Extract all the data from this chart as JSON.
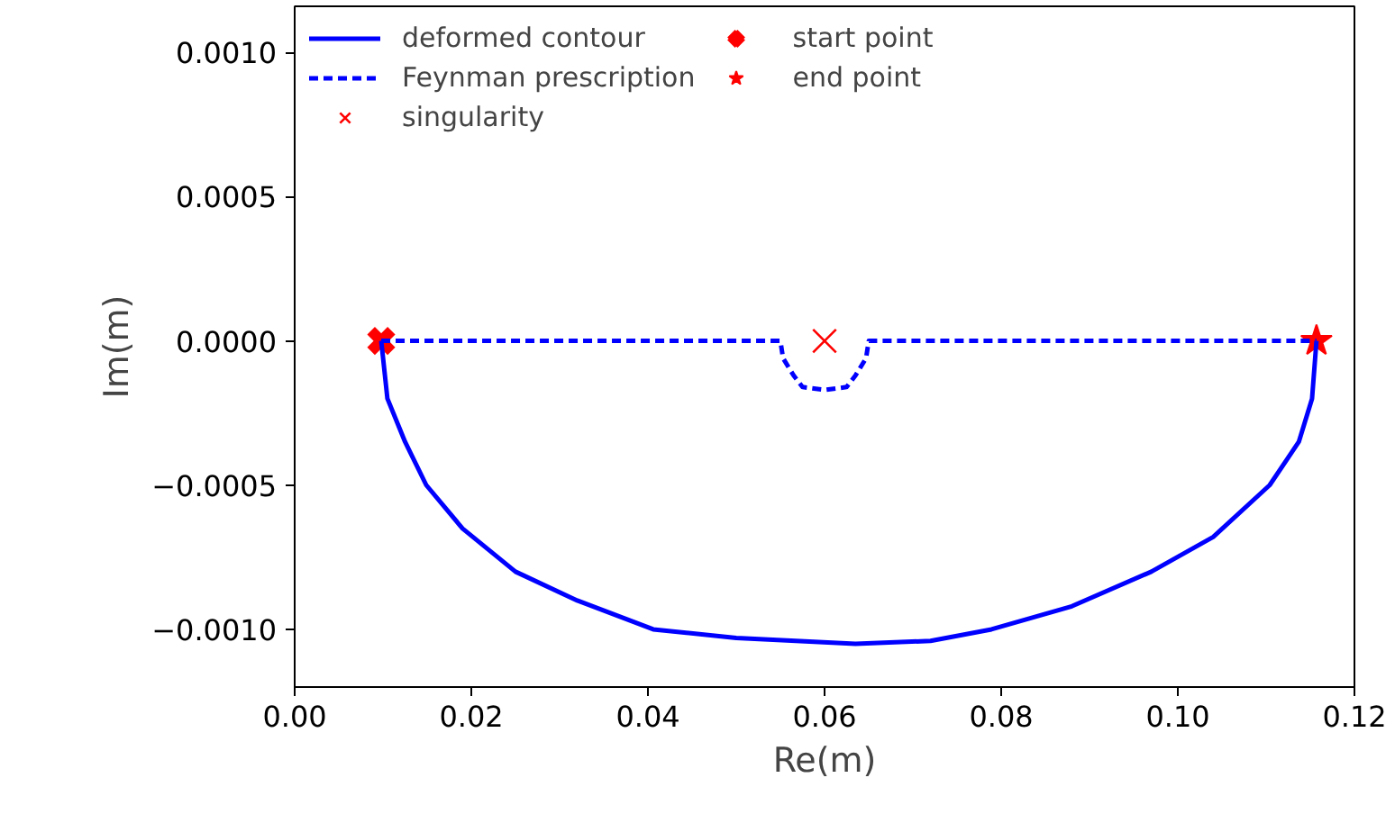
{
  "chart_data": {
    "type": "line",
    "xlabel": "Re(m)",
    "ylabel": "Im(m)",
    "xlim": [
      0,
      0.12
    ],
    "ylim": [
      -0.0012,
      0.00116
    ],
    "xticks": [
      {
        "value": 0,
        "label": "0.00"
      },
      {
        "value": 0.02,
        "label": "0.02"
      },
      {
        "value": 0.04,
        "label": "0.04"
      },
      {
        "value": 0.06,
        "label": "0.06"
      },
      {
        "value": 0.08,
        "label": "0.08"
      },
      {
        "value": 0.1,
        "label": "0.10"
      },
      {
        "value": 0.12,
        "label": "0.12"
      }
    ],
    "yticks": [
      {
        "value": -0.001,
        "label": "−0.0010"
      },
      {
        "value": -0.0005,
        "label": "−0.0005"
      },
      {
        "value": 0,
        "label": "0.0000"
      },
      {
        "value": 0.0005,
        "label": "0.0005"
      },
      {
        "value": 0.001,
        "label": "0.0010"
      }
    ],
    "grid": false,
    "legend": "top left",
    "series": [
      {
        "name": "deformed contour",
        "color": "#0000ff",
        "line_style": "solid",
        "marker": "none",
        "x": [
          0.0098,
          0.0105,
          0.0125,
          0.0149,
          0.019,
          0.025,
          0.032,
          0.0406,
          0.05,
          0.0635,
          0.072,
          0.0789,
          0.088,
          0.097,
          0.104,
          0.1104,
          0.1137,
          0.1152,
          0.1157
        ],
        "values": [
          0,
          -0.0002,
          -0.00035,
          -0.0005,
          -0.00065,
          -0.0008,
          -0.0009,
          -0.001,
          -0.00103,
          -0.00105,
          -0.00104,
          -0.001,
          -0.00092,
          -0.0008,
          -0.00068,
          -0.0005,
          -0.00035,
          -0.0002,
          0
        ]
      },
      {
        "name": "Feynman prescription",
        "color": "#0000ff",
        "line_style": "dashed",
        "marker": "none",
        "x": [
          0.0098,
          0.055,
          0.0553,
          0.0565,
          0.0575,
          0.06,
          0.0625,
          0.0635,
          0.0647,
          0.065,
          0.1157
        ],
        "values": [
          0,
          0,
          -6e-05,
          -0.00012,
          -0.00016,
          -0.00017,
          -0.00016,
          -0.00012,
          -6e-05,
          0,
          0
        ]
      },
      {
        "name": "singularity",
        "type": "scatter",
        "color": "#ff0000",
        "marker": "x",
        "x": [
          0.06
        ],
        "values": [
          0
        ]
      },
      {
        "name": "start point",
        "type": "scatter",
        "color": "#ff0000",
        "marker": "cross",
        "x": [
          0.0098
        ],
        "values": [
          0
        ]
      },
      {
        "name": "end point",
        "type": "scatter",
        "color": "#ff0000",
        "marker": "star",
        "x": [
          0.1157
        ],
        "values": [
          0
        ]
      }
    ]
  }
}
